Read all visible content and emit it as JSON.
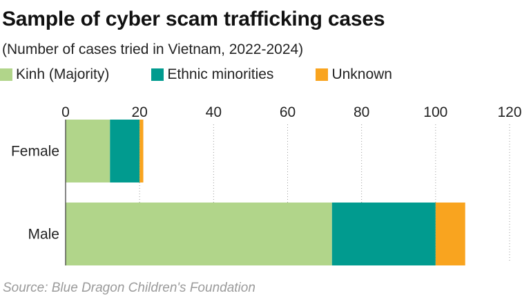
{
  "chart_data": {
    "type": "bar",
    "orientation": "horizontal",
    "stacked": true,
    "title": "Sample of cyber scam trafficking cases",
    "subtitle": "(Number of cases tried in Vietnam, 2022-2024)",
    "categories": [
      "Female",
      "Male"
    ],
    "series": [
      {
        "name": "Kinh (Majority)",
        "color": "#b1d58a",
        "values": [
          12,
          72
        ]
      },
      {
        "name": "Ethnic minorities",
        "color": "#019b8f",
        "values": [
          8,
          28
        ]
      },
      {
        "name": "Unknown",
        "color": "#f9a41f",
        "values": [
          1,
          8
        ]
      }
    ],
    "xlim": [
      0,
      120
    ],
    "xticks": [
      0,
      20,
      40,
      60,
      80,
      100,
      120
    ],
    "xtick_labels": [
      "0",
      "20",
      "40",
      "60",
      "80",
      "100",
      "120"
    ],
    "grid": "vertical dotted",
    "legend_position": "top-left",
    "source": "Source: Blue Dragon Children's Foundation"
  }
}
